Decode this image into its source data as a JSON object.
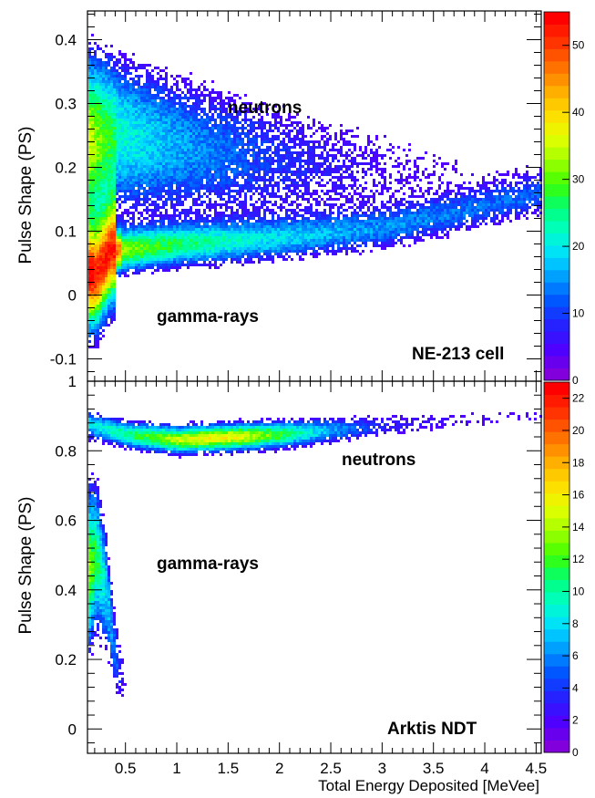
{
  "chart_data": [
    {
      "type": "heatmap",
      "panel": "top",
      "xlabel": "",
      "ylabel": "Pulse Shape (PS)",
      "xlim": [
        0.13,
        4.55
      ],
      "ylim": [
        -0.135,
        0.445
      ],
      "x_ticks": [
        "0.5",
        "1",
        "1.5",
        "2",
        "2.5",
        "3",
        "3.5",
        "4",
        "4.5"
      ],
      "y_ticks": [
        "-0.1",
        "0",
        "0.1",
        "0.2",
        "0.3",
        "0.4"
      ],
      "annotations": {
        "neutrons": "neutrons",
        "gamma": "gamma-rays",
        "detector": "NE-213 cell"
      },
      "colorbar": {
        "min": 0,
        "max": 55,
        "ticks": [
          "0",
          "10",
          "20",
          "30",
          "40",
          "50"
        ]
      },
      "bands": [
        {
          "label": "neutrons",
          "ridge": [
            [
              0.25,
              0.26
            ],
            [
              0.5,
              0.25
            ],
            [
              1.0,
              0.235
            ],
            [
              2.0,
              0.21
            ],
            [
              3.0,
              0.195
            ],
            [
              4.0,
              0.185
            ],
            [
              4.5,
              0.18
            ]
          ]
        },
        {
          "label": "gamma-rays",
          "ridge": [
            [
              0.2,
              0.03
            ],
            [
              0.35,
              0.07
            ],
            [
              1.0,
              0.08
            ],
            [
              2.0,
              0.09
            ],
            [
              3.0,
              0.105
            ],
            [
              4.0,
              0.14
            ],
            [
              4.5,
              0.16
            ]
          ]
        }
      ]
    },
    {
      "type": "heatmap",
      "panel": "bottom",
      "xlabel": "Total Energy Deposited [MeVee]",
      "ylabel": "Pulse Shape (PS)",
      "xlim": [
        0.13,
        4.55
      ],
      "ylim": [
        -0.07,
        1.0
      ],
      "x_ticks": [
        "0.5",
        "1",
        "1.5",
        "2",
        "2.5",
        "3",
        "3.5",
        "4",
        "4.5"
      ],
      "y_ticks": [
        "0",
        "0.2",
        "0.4",
        "0.6",
        "0.8",
        "1"
      ],
      "annotations": {
        "neutrons": "neutrons",
        "gamma": "gamma-rays",
        "detector": "Arktis NDT"
      },
      "colorbar": {
        "min": 0,
        "max": 23,
        "ticks": [
          "0",
          "2",
          "4",
          "6",
          "8",
          "10",
          "12",
          "14",
          "16",
          "18",
          "20",
          "22"
        ]
      },
      "bands": [
        {
          "label": "neutrons",
          "ridge": [
            [
              0.15,
              0.88
            ],
            [
              0.5,
              0.85
            ],
            [
              1.0,
              0.835
            ],
            [
              2.0,
              0.85
            ],
            [
              3.0,
              0.875
            ],
            [
              4.0,
              0.895
            ],
            [
              4.5,
              0.905
            ]
          ]
        },
        {
          "label": "gamma-rays",
          "ridge": [
            [
              0.13,
              0.45
            ],
            [
              0.2,
              0.5
            ],
            [
              0.3,
              0.4
            ],
            [
              0.4,
              0.2
            ],
            [
              0.5,
              0.12
            ]
          ]
        }
      ]
    }
  ]
}
